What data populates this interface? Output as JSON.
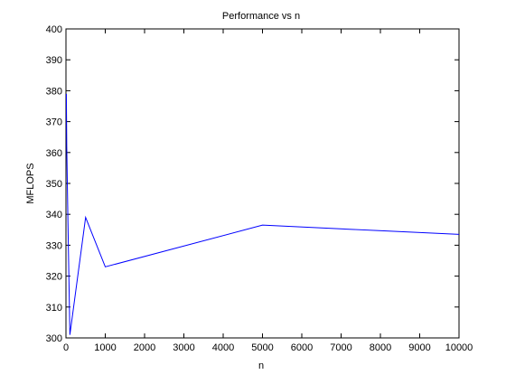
{
  "chart_data": {
    "type": "line",
    "title": "Performance vs n",
    "xlabel": "n",
    "ylabel": "MFLOPS",
    "xlim": [
      0,
      10000
    ],
    "ylim": [
      300,
      400
    ],
    "xticks": [
      0,
      1000,
      2000,
      3000,
      4000,
      5000,
      6000,
      7000,
      8000,
      9000,
      10000
    ],
    "yticks": [
      300,
      310,
      320,
      330,
      340,
      350,
      360,
      370,
      380,
      390,
      400
    ],
    "grid": false,
    "series": [
      {
        "color": "#0000ff",
        "x": [
          10,
          20,
          50,
          100,
          500,
          1000,
          5000,
          10000
        ],
        "y": [
          379,
          362,
          338,
          301,
          339,
          323,
          336.5,
          333.5
        ]
      }
    ]
  }
}
